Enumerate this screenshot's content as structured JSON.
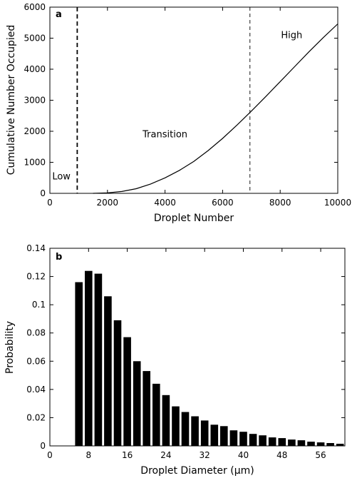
{
  "chart_data": [
    {
      "type": "line",
      "panel_label": "a",
      "xlabel": "Droplet Number",
      "ylabel": "Cumulative Number Occupied",
      "xlim": [
        0,
        10000
      ],
      "ylim": [
        0,
        6000
      ],
      "x_ticks": [
        0,
        2000,
        4000,
        6000,
        8000,
        10000
      ],
      "y_ticks": [
        0,
        1000,
        2000,
        3000,
        4000,
        5000,
        6000
      ],
      "vlines": [
        {
          "x": 950,
          "style": "dashed-heavy"
        },
        {
          "x": 6950,
          "style": "dashed-light"
        }
      ],
      "annotations": [
        {
          "text": "Low",
          "x": 400,
          "y": 450
        },
        {
          "text": "Transition",
          "x": 4000,
          "y": 1800
        },
        {
          "text": "High",
          "x": 8400,
          "y": 5000
        }
      ],
      "series": [
        {
          "x": [
            1500,
            2000,
            2500,
            3000,
            3500,
            4000,
            4500,
            5000,
            5500,
            6000,
            6500,
            7000,
            7500,
            8000,
            8500,
            9000,
            9500,
            10000
          ],
          "y": [
            0,
            15,
            60,
            150,
            300,
            500,
            740,
            1030,
            1380,
            1770,
            2200,
            2650,
            3120,
            3600,
            4080,
            4560,
            5020,
            5460
          ]
        }
      ]
    },
    {
      "type": "bar",
      "panel_label": "b",
      "xlabel": "Droplet Diameter (μm)",
      "ylabel": "Probability",
      "xlim": [
        0,
        61
      ],
      "ylim": [
        0,
        0.14
      ],
      "x_ticks": [
        0,
        8,
        16,
        24,
        32,
        40,
        48,
        56
      ],
      "y_ticks": [
        0,
        0.02,
        0.04,
        0.06,
        0.08,
        0.1,
        0.12,
        0.14
      ],
      "y_tick_labels": [
        "0",
        "0.02",
        "0.04",
        "0.06",
        "0.08",
        "0.1",
        "0.12",
        "0.14"
      ],
      "bin_width": 2,
      "bin_centers": [
        6,
        8,
        10,
        12,
        14,
        16,
        18,
        20,
        22,
        24,
        26,
        28,
        30,
        32,
        34,
        36,
        38,
        40,
        42,
        44,
        46,
        48,
        50,
        52,
        54,
        56,
        58,
        60
      ],
      "values": [
        0.116,
        0.124,
        0.122,
        0.106,
        0.089,
        0.077,
        0.06,
        0.053,
        0.044,
        0.036,
        0.028,
        0.024,
        0.021,
        0.018,
        0.015,
        0.014,
        0.011,
        0.01,
        0.0085,
        0.0075,
        0.006,
        0.0055,
        0.0045,
        0.004,
        0.003,
        0.0025,
        0.002,
        0.0015
      ]
    }
  ]
}
